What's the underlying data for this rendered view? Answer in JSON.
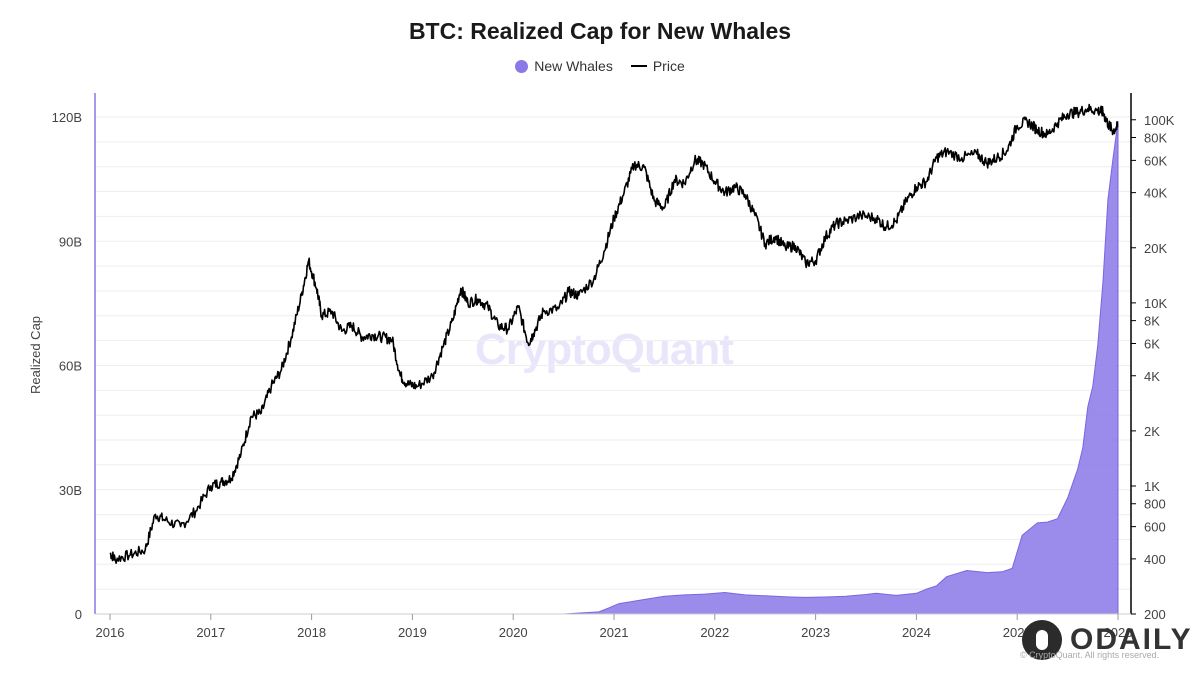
{
  "chart_data": {
    "type": "area",
    "title": "BTC: Realized Cap for New Whales",
    "ylabel": "Realized Cap",
    "legend": [
      "New Whales",
      "Price"
    ],
    "legend_position": "top-center",
    "colors": {
      "new_whales": "#8a77e8",
      "price": "#000000",
      "grid": "#eeeeee"
    },
    "x_ticks": [
      "2016",
      "2017",
      "2018",
      "2019",
      "2020",
      "2021",
      "2022",
      "2023",
      "2024",
      "2025",
      "2026"
    ],
    "y_left_ticks": [
      "0",
      "30B",
      "60B",
      "90B",
      "120B"
    ],
    "y_left_range": [
      0,
      120
    ],
    "y_right_ticks": [
      "200",
      "400",
      "600",
      "800",
      "1K",
      "2K",
      "4K",
      "6K",
      "8K",
      "10K",
      "20K",
      "40K",
      "60K",
      "80K",
      "100K"
    ],
    "y_right_values": [
      200,
      400,
      600,
      800,
      1000,
      2000,
      4000,
      6000,
      8000,
      10000,
      20000,
      40000,
      60000,
      80000,
      100000
    ],
    "y_right_range": [
      200,
      140000
    ],
    "y_right_scale": "log",
    "series": [
      {
        "name": "New Whales",
        "type": "area",
        "x": [
          2016.0,
          2020.5,
          2020.85,
          2020.95,
          2021.05,
          2021.3,
          2021.5,
          2021.7,
          2021.9,
          2022.1,
          2022.3,
          2022.5,
          2022.75,
          2022.9,
          2023.1,
          2023.3,
          2023.5,
          2023.6,
          2023.8,
          2024.0,
          2024.1,
          2024.2,
          2024.3,
          2024.5,
          2024.7,
          2024.85,
          2024.95,
          2025.05,
          2025.2,
          2025.3,
          2025.4,
          2025.5,
          2025.6,
          2025.65,
          2025.7,
          2025.75,
          2025.8,
          2025.85,
          2025.9,
          2025.95,
          2026.0
        ],
        "values": [
          0,
          0,
          0.5,
          1.5,
          2.5,
          3.5,
          4.3,
          4.6,
          4.8,
          5.2,
          4.6,
          4.4,
          4.1,
          4.0,
          4.1,
          4.3,
          4.7,
          5.0,
          4.5,
          5.0,
          6.0,
          6.8,
          9.0,
          10.5,
          10.0,
          10.2,
          11.0,
          19.0,
          22.0,
          22.2,
          23.0,
          28.0,
          35.0,
          40.0,
          50.0,
          55.0,
          65.0,
          80.0,
          100.0,
          110.0,
          119.0
        ]
      },
      {
        "name": "Price",
        "type": "line",
        "x": [
          2016.0,
          2016.05,
          2016.2,
          2016.35,
          2016.45,
          2016.55,
          2016.7,
          2016.85,
          2017.0,
          2017.1,
          2017.2,
          2017.3,
          2017.4,
          2017.5,
          2017.6,
          2017.7,
          2017.8,
          2017.9,
          2017.97,
          2018.05,
          2018.1,
          2018.2,
          2018.3,
          2018.4,
          2018.5,
          2018.6,
          2018.7,
          2018.8,
          2018.88,
          2018.95,
          2019.05,
          2019.2,
          2019.3,
          2019.4,
          2019.48,
          2019.55,
          2019.65,
          2019.75,
          2019.85,
          2019.95,
          2020.05,
          2020.15,
          2020.2,
          2020.3,
          2020.45,
          2020.55,
          2020.65,
          2020.8,
          2020.9,
          2021.0,
          2021.1,
          2021.2,
          2021.3,
          2021.4,
          2021.5,
          2021.6,
          2021.7,
          2021.8,
          2021.88,
          2022.0,
          2022.1,
          2022.2,
          2022.3,
          2022.4,
          2022.5,
          2022.6,
          2022.7,
          2022.8,
          2022.9,
          2023.0,
          2023.1,
          2023.2,
          2023.3,
          2023.45,
          2023.6,
          2023.7,
          2023.8,
          2023.9,
          2024.0,
          2024.1,
          2024.2,
          2024.3,
          2024.45,
          2024.6,
          2024.7,
          2024.8,
          2024.9,
          2025.0,
          2025.1,
          2025.2,
          2025.3,
          2025.4,
          2025.5,
          2025.6,
          2025.7,
          2025.8,
          2025.85,
          2025.9,
          2025.95,
          2026.0
        ],
        "values": [
          430,
          400,
          420,
          450,
          700,
          650,
          600,
          730,
          1000,
          1050,
          1100,
          1500,
          2400,
          2500,
          3500,
          4300,
          6500,
          11000,
          17000,
          12000,
          8500,
          9000,
          7000,
          7500,
          6500,
          6700,
          6500,
          6300,
          4000,
          3600,
          3500,
          4000,
          5700,
          8000,
          12000,
          10000,
          10500,
          9500,
          7500,
          7200,
          9500,
          6000,
          6800,
          9000,
          9300,
          11500,
          11000,
          13500,
          19000,
          29000,
          40000,
          57000,
          55000,
          36000,
          33000,
          47000,
          45000,
          60000,
          58000,
          46000,
          40000,
          43000,
          39000,
          30000,
          21000,
          23000,
          20000,
          20500,
          16500,
          17000,
          23000,
          27000,
          28000,
          30000,
          29000,
          26000,
          28000,
          36000,
          43000,
          46000,
          62000,
          67000,
          62000,
          65000,
          58000,
          62000,
          68000,
          93000,
          98000,
          88000,
          83000,
          96000,
          108000,
          110000,
          115000,
          112000,
          110000,
          95000,
          87000,
          92000
        ]
      }
    ]
  },
  "watermark": "CryptoQuant",
  "brand": "ODAILY",
  "copyright": "© CryptoQuant. All rights reserved."
}
